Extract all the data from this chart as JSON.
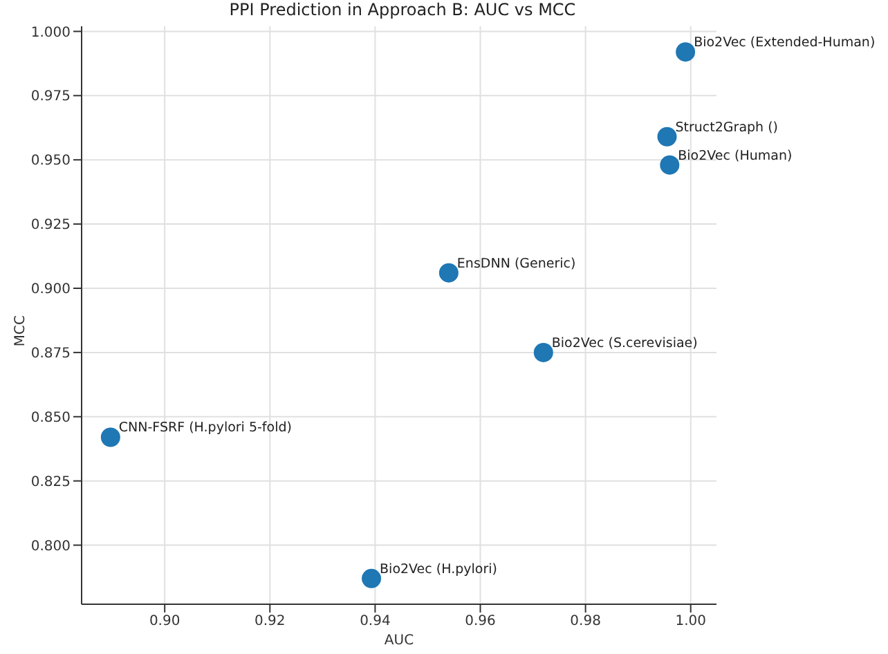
{
  "chart_data": {
    "type": "scatter",
    "title": "PPI Prediction in Approach B: AUC vs MCC",
    "xlabel": "AUC",
    "ylabel": "MCC",
    "x": [
      0.999,
      0.9955,
      0.996,
      0.954,
      0.972,
      0.8897,
      0.9393
    ],
    "series": [
      {
        "color": "#1f77b4",
        "values": [
          0.992,
          0.959,
          0.948,
          0.906,
          0.875,
          0.842,
          0.787
        ]
      }
    ],
    "marker": "circle",
    "xlim": [
      0.8842,
      1.0049
    ],
    "xticks": [
      {
        "value": 0.9,
        "label": "0.90"
      },
      {
        "value": 0.92,
        "label": "0.92"
      },
      {
        "value": 0.94,
        "label": "0.94"
      },
      {
        "value": 0.96,
        "label": "0.96"
      },
      {
        "value": 0.98,
        "label": "0.98"
      },
      {
        "value": 1.0,
        "label": "1.00"
      }
    ],
    "ylim": [
      0.777,
      1.002
    ],
    "yticks": [
      {
        "value": 0.8,
        "label": "0.800"
      },
      {
        "value": 0.825,
        "label": "0.825"
      },
      {
        "value": 0.85,
        "label": "0.850"
      },
      {
        "value": 0.875,
        "label": "0.875"
      },
      {
        "value": 0.9,
        "label": "0.900"
      },
      {
        "value": 0.925,
        "label": "0.925"
      },
      {
        "value": 0.95,
        "label": "0.950"
      },
      {
        "value": 0.975,
        "label": "0.975"
      },
      {
        "value": 1.0,
        "label": "1.000"
      }
    ],
    "grid": true,
    "legend": false,
    "annotations": [
      {
        "text": "Bio2Vec (Extended-Human)",
        "x": 0.999,
        "y": 0.992
      },
      {
        "text": "Struct2Graph ()",
        "x": 0.9955,
        "y": 0.959
      },
      {
        "text": "Bio2Vec (Human)",
        "x": 0.996,
        "y": 0.948
      },
      {
        "text": "EnsDNN (Generic)",
        "x": 0.954,
        "y": 0.906
      },
      {
        "text": "Bio2Vec (S.cerevisiae)",
        "x": 0.972,
        "y": 0.875
      },
      {
        "text": "CNN-FSRF (H.pylori 5-fold)",
        "x": 0.8897,
        "y": 0.842
      },
      {
        "text": "Bio2Vec (H.pylori)",
        "x": 0.9393,
        "y": 0.787
      }
    ]
  }
}
